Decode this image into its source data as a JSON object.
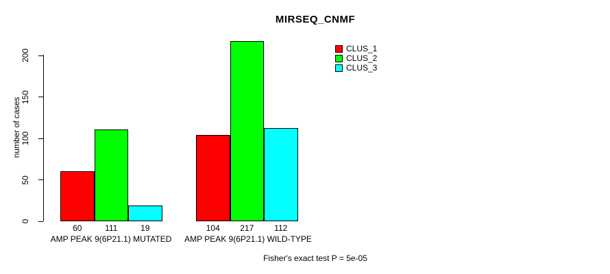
{
  "title": "MIRSEQ_CNMF",
  "ylabel": "number of cases",
  "footer": "Fisher's exact test P = 5e-05",
  "legend": {
    "items": [
      {
        "label": "CLUS_1",
        "color": "#ff0000"
      },
      {
        "label": "CLUS_2",
        "color": "#00ff00"
      },
      {
        "label": "CLUS_3",
        "color": "#00ffff"
      }
    ]
  },
  "chart_data": {
    "type": "bar",
    "title": "MIRSEQ_CNMF",
    "ylabel": "number of cases",
    "xlabel": "",
    "groups": [
      "AMP PEAK 9(6P21.1) MUTATED",
      "AMP PEAK 9(6P21.1) WILD-TYPE"
    ],
    "series": [
      {
        "name": "CLUS_1",
        "color": "#ff0000",
        "values": [
          60,
          104
        ]
      },
      {
        "name": "CLUS_2",
        "color": "#00ff00",
        "values": [
          111,
          217
        ]
      },
      {
        "name": "CLUS_3",
        "color": "#00ffff",
        "values": [
          19,
          112
        ]
      }
    ],
    "bar_value_labels": [
      [
        60,
        111,
        19
      ],
      [
        104,
        217,
        112
      ]
    ],
    "yticks": [
      0,
      50,
      100,
      150,
      200
    ],
    "ylim": [
      0,
      220
    ],
    "grid": false,
    "legend_position": "top-right",
    "annotation": "Fisher's exact test P = 5e-05"
  }
}
